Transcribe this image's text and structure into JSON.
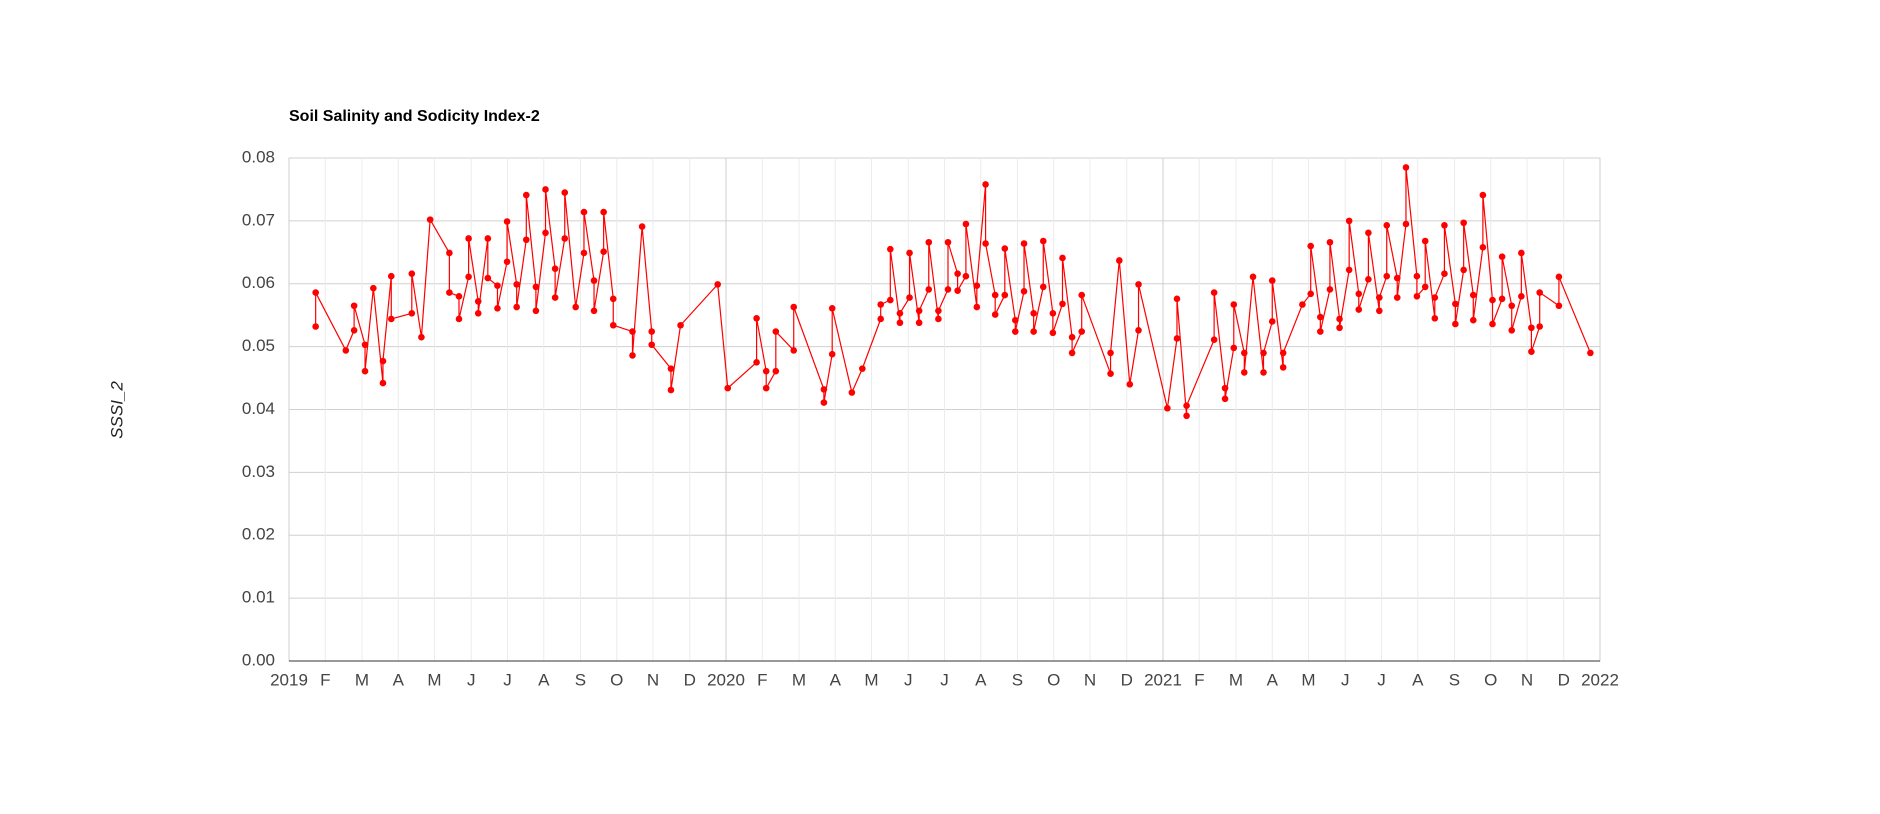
{
  "chart_data": {
    "type": "line",
    "title": "Soil Salinity and Sodicity Index-2",
    "y_label": "SSSI_2",
    "color": "#ff0000",
    "grid": true,
    "xlim": [
      2019,
      2022
    ],
    "xticks": [
      2019,
      {
        "value": 2019.083,
        "label": "F"
      },
      {
        "value": 2019.167,
        "label": "M"
      },
      {
        "value": 2019.25,
        "label": "A"
      },
      {
        "value": 2019.333,
        "label": "M"
      },
      {
        "value": 2019.417,
        "label": "J"
      },
      {
        "value": 2019.5,
        "label": "J"
      },
      {
        "value": 2019.583,
        "label": "A"
      },
      {
        "value": 2019.667,
        "label": "S"
      },
      {
        "value": 2019.75,
        "label": "O"
      },
      {
        "value": 2019.833,
        "label": "N"
      },
      {
        "value": 2019.917,
        "label": "D"
      },
      2020,
      {
        "value": 2020.083,
        "label": "F"
      },
      {
        "value": 2020.167,
        "label": "M"
      },
      {
        "value": 2020.25,
        "label": "A"
      },
      {
        "value": 2020.333,
        "label": "M"
      },
      {
        "value": 2020.417,
        "label": "J"
      },
      {
        "value": 2020.5,
        "label": "J"
      },
      {
        "value": 2020.583,
        "label": "A"
      },
      {
        "value": 2020.667,
        "label": "S"
      },
      {
        "value": 2020.75,
        "label": "O"
      },
      {
        "value": 2020.833,
        "label": "N"
      },
      {
        "value": 2020.917,
        "label": "D"
      },
      2021,
      {
        "value": 2021.083,
        "label": "F"
      },
      {
        "value": 2021.167,
        "label": "M"
      },
      {
        "value": 2021.25,
        "label": "A"
      },
      {
        "value": 2021.333,
        "label": "M"
      },
      {
        "value": 2021.417,
        "label": "J"
      },
      {
        "value": 2021.5,
        "label": "J"
      },
      {
        "value": 2021.583,
        "label": "A"
      },
      {
        "value": 2021.667,
        "label": "S"
      },
      {
        "value": 2021.75,
        "label": "O"
      },
      {
        "value": 2021.833,
        "label": "N"
      },
      {
        "value": 2021.917,
        "label": "D"
      },
      2022
    ],
    "ylim": [
      0,
      0.08
    ],
    "yticks": [
      {
        "value": 0,
        "label": "0.00"
      },
      0.01,
      0.02,
      0.03,
      0.04,
      0.05,
      0.06,
      0.07,
      0.08
    ],
    "x": [
      2019.061,
      2019.061,
      2019.13,
      2019.149,
      2019.149,
      2019.174,
      2019.174,
      2019.193,
      2019.215,
      2019.215,
      2019.234,
      2019.234,
      2019.281,
      2019.281,
      2019.303,
      2019.323,
      2019.367,
      2019.367,
      2019.389,
      2019.389,
      2019.411,
      2019.411,
      2019.433,
      2019.433,
      2019.455,
      2019.455,
      2019.477,
      2019.477,
      2019.499,
      2019.499,
      2019.521,
      2019.521,
      2019.543,
      2019.543,
      2019.565,
      2019.565,
      2019.587,
      2019.587,
      2019.609,
      2019.609,
      2019.631,
      2019.631,
      2019.656,
      2019.675,
      2019.675,
      2019.698,
      2019.698,
      2019.72,
      2019.72,
      2019.742,
      2019.742,
      2019.786,
      2019.786,
      2019.808,
      2019.83,
      2019.83,
      2019.874,
      2019.874,
      2019.896,
      2019.981,
      2020.004,
      2020.07,
      2020.07,
      2020.092,
      2020.092,
      2020.114,
      2020.114,
      2020.155,
      2020.155,
      2020.224,
      2020.224,
      2020.243,
      2020.243,
      2020.288,
      2020.312,
      2020.354,
      2020.354,
      2020.376,
      2020.376,
      2020.398,
      2020.398,
      2020.42,
      2020.42,
      2020.442,
      2020.442,
      2020.464,
      2020.464,
      2020.486,
      2020.486,
      2020.508,
      2020.508,
      2020.53,
      2020.53,
      2020.549,
      2020.549,
      2020.574,
      2020.574,
      2020.594,
      2020.594,
      2020.616,
      2020.616,
      2020.638,
      2020.638,
      2020.662,
      2020.662,
      2020.682,
      2020.682,
      2020.704,
      2020.704,
      2020.726,
      2020.726,
      2020.748,
      2020.748,
      2020.77,
      2020.77,
      2020.792,
      2020.792,
      2020.814,
      2020.814,
      2020.88,
      2020.88,
      2020.9,
      2020.924,
      2020.944,
      2020.944,
      2021.01,
      2021.032,
      2021.032,
      2021.054,
      2021.054,
      2021.117,
      2021.117,
      2021.142,
      2021.142,
      2021.162,
      2021.162,
      2021.186,
      2021.186,
      2021.206,
      2021.23,
      2021.23,
      2021.25,
      2021.25,
      2021.275,
      2021.275,
      2021.319,
      2021.338,
      2021.338,
      2021.36,
      2021.36,
      2021.382,
      2021.382,
      2021.404,
      2021.404,
      2021.426,
      2021.426,
      2021.448,
      2021.448,
      2021.47,
      2021.47,
      2021.495,
      2021.495,
      2021.512,
      2021.512,
      2021.536,
      2021.536,
      2021.556,
      2021.556,
      2021.581,
      2021.581,
      2021.6,
      2021.6,
      2021.622,
      2021.622,
      2021.644,
      2021.644,
      2021.669,
      2021.669,
      2021.688,
      2021.688,
      2021.71,
      2021.71,
      2021.732,
      2021.732,
      2021.754,
      2021.754,
      2021.776,
      2021.776,
      2021.798,
      2021.798,
      2021.82,
      2021.82,
      2021.843,
      2021.843,
      2021.862,
      2021.862,
      2021.906,
      2021.906,
      2021.978
    ],
    "values": [
      0.0532,
      0.0586,
      0.0494,
      0.0526,
      0.0565,
      0.0503,
      0.0461,
      0.0593,
      0.0442,
      0.0477,
      0.0612,
      0.0544,
      0.0553,
      0.0616,
      0.0515,
      0.0702,
      0.0649,
      0.0586,
      0.058,
      0.0544,
      0.0611,
      0.0672,
      0.0572,
      0.0553,
      0.0672,
      0.0609,
      0.0597,
      0.0561,
      0.0635,
      0.0699,
      0.0599,
      0.0563,
      0.067,
      0.0741,
      0.0595,
      0.0557,
      0.0681,
      0.075,
      0.0624,
      0.0578,
      0.0672,
      0.0745,
      0.0563,
      0.0649,
      0.0714,
      0.0605,
      0.0557,
      0.0651,
      0.0714,
      0.0576,
      0.0534,
      0.0524,
      0.0486,
      0.0691,
      0.0524,
      0.0503,
      0.0465,
      0.0431,
      0.0534,
      0.0599,
      0.0434,
      0.0475,
      0.0545,
      0.0461,
      0.0434,
      0.0461,
      0.0524,
      0.0494,
      0.0563,
      0.0432,
      0.0411,
      0.0488,
      0.0561,
      0.0427,
      0.0465,
      0.0544,
      0.0567,
      0.0574,
      0.0655,
      0.0538,
      0.0553,
      0.0578,
      0.0649,
      0.0538,
      0.0557,
      0.0591,
      0.0666,
      0.0544,
      0.0557,
      0.0591,
      0.0666,
      0.0616,
      0.0589,
      0.0612,
      0.0695,
      0.0563,
      0.0597,
      0.0758,
      0.0664,
      0.0582,
      0.0551,
      0.0582,
      0.0656,
      0.0542,
      0.0524,
      0.0588,
      0.0664,
      0.0553,
      0.0524,
      0.0595,
      0.0668,
      0.0553,
      0.0522,
      0.0568,
      0.0641,
      0.0515,
      0.049,
      0.0524,
      0.0582,
      0.0457,
      0.049,
      0.0637,
      0.044,
      0.0526,
      0.0599,
      0.0402,
      0.0513,
      0.0576,
      0.039,
      0.0406,
      0.0511,
      0.0586,
      0.0434,
      0.0417,
      0.0498,
      0.0567,
      0.049,
      0.0459,
      0.0611,
      0.0459,
      0.049,
      0.054,
      0.0605,
      0.0467,
      0.049,
      0.0567,
      0.0584,
      0.066,
      0.0547,
      0.0524,
      0.0591,
      0.0666,
      0.0544,
      0.053,
      0.0622,
      0.07,
      0.0584,
      0.0559,
      0.0607,
      0.0681,
      0.0557,
      0.0578,
      0.0612,
      0.0693,
      0.0609,
      0.0578,
      0.0695,
      0.0785,
      0.0612,
      0.058,
      0.0595,
      0.0668,
      0.0545,
      0.0578,
      0.0616,
      0.0693,
      0.0568,
      0.0536,
      0.0622,
      0.0697,
      0.0582,
      0.0542,
      0.0658,
      0.0741,
      0.0574,
      0.0536,
      0.0576,
      0.0643,
      0.0565,
      0.0526,
      0.058,
      0.0649,
      0.053,
      0.0492,
      0.0532,
      0.0586,
      0.0565,
      0.0611,
      0.049
    ]
  }
}
